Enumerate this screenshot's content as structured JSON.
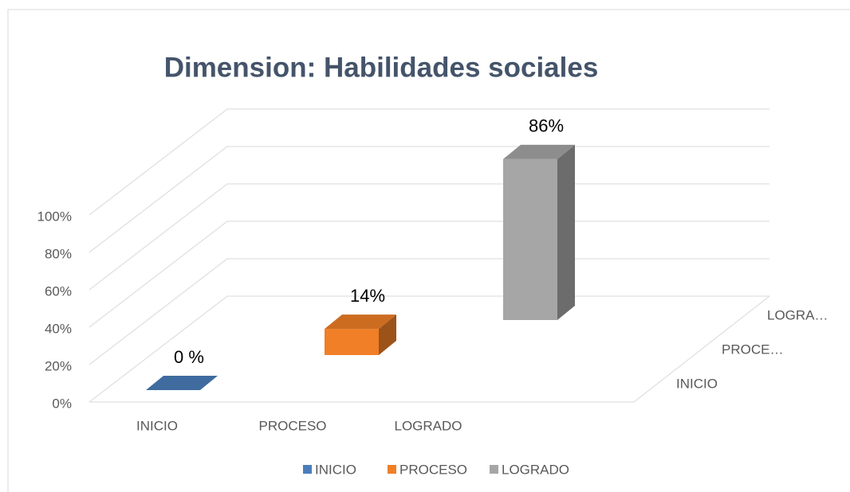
{
  "chart_data": {
    "type": "bar3d",
    "title": "Dimension: Habilidades sociales",
    "categories": [
      "INICIO",
      "PROCESO",
      "LOGRADO"
    ],
    "depth_labels": [
      "INICIO",
      "PROCE…",
      "LOGRA…"
    ],
    "series": [
      {
        "name": "INICIO",
        "color": "#4a7ebb",
        "values": [
          0,
          null,
          null
        ],
        "value_labels": [
          "0 %",
          null,
          null
        ]
      },
      {
        "name": "PROCESO",
        "color": "#f07f27",
        "values": [
          null,
          14,
          null
        ],
        "value_labels": [
          null,
          "14%",
          null
        ]
      },
      {
        "name": "LOGRADO",
        "color": "#a6a6a6",
        "values": [
          null,
          null,
          86
        ],
        "value_labels": [
          null,
          null,
          "86%"
        ]
      }
    ],
    "ylim": [
      0,
      100
    ],
    "yticks": [
      {
        "value": 0,
        "label": "0%"
      },
      {
        "value": 20,
        "label": "20%"
      },
      {
        "value": 40,
        "label": "40%"
      },
      {
        "value": 60,
        "label": "60%"
      },
      {
        "value": 80,
        "label": "80%"
      },
      {
        "value": 100,
        "label": "100%"
      }
    ],
    "grid": true
  }
}
